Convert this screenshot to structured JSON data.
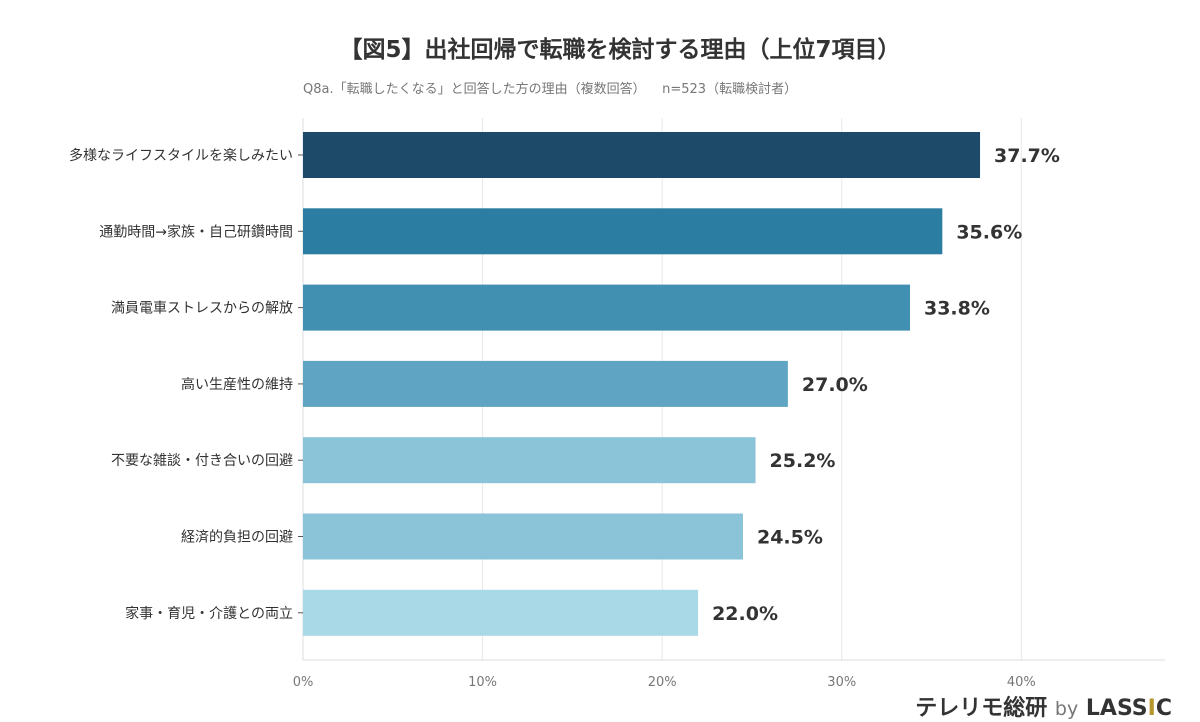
{
  "chart_data": {
    "type": "bar",
    "orientation": "horizontal",
    "title": "【図5】出社回帰で転職を検討する理由（上位7項目）",
    "subtitle": "Q8a.「転職したくなる」と回答した方の理由（複数回答）    n=523（転職検討者）",
    "categories": [
      "多様なライフスタイルを楽しみたい",
      "通勤時間→家族・自己研鑽時間",
      "満員電車ストレスからの解放",
      "高い生産性の維持",
      "不要な雑談・付き合いの回避",
      "経済的負担の回避",
      "家事・育児・介護との両立"
    ],
    "values": [
      37.7,
      35.6,
      33.8,
      27.0,
      25.2,
      24.5,
      22.0
    ],
    "data_labels": [
      "37.7%",
      "35.6%",
      "33.8%",
      "27.0%",
      "25.2%",
      "24.5%",
      "22.0%"
    ],
    "colors": [
      "#1e4a69",
      "#2b7da1",
      "#418fb1",
      "#5fa4c2",
      "#8bc4d8",
      "#8bc4d8",
      "#a9d9e6"
    ],
    "xticks": [
      0,
      10,
      20,
      30,
      40
    ],
    "xtick_labels": [
      "0%",
      "10%",
      "20%",
      "30%",
      "40%"
    ],
    "xlim": [
      0,
      48
    ],
    "grid": true
  },
  "logo": {
    "main": "テレリモ総研",
    "by": "by",
    "brand_a": "LASS",
    "brand_i": "I",
    "brand_c": "C"
  }
}
